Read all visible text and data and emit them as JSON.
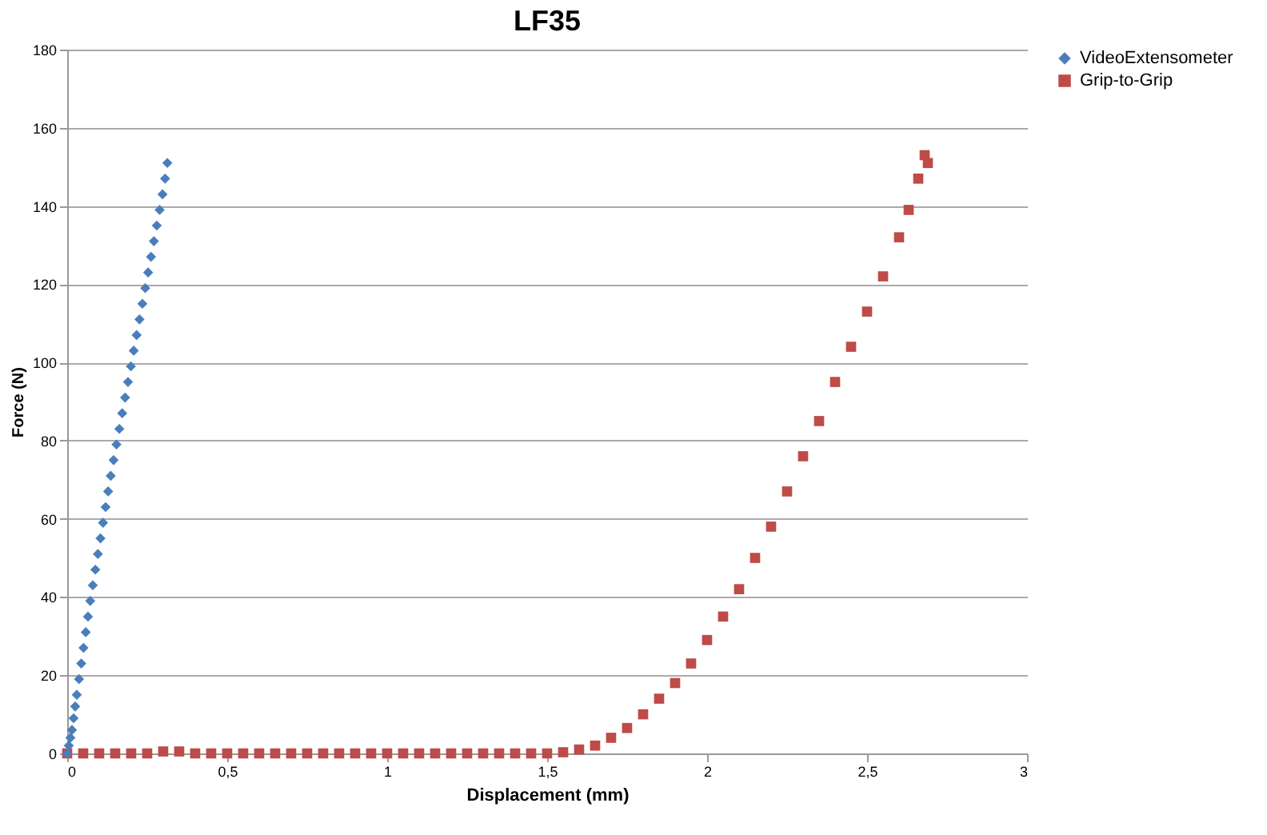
{
  "chart_data": {
    "type": "scatter",
    "title": "LF35",
    "xlabel": "Displacement (mm)",
    "ylabel": "Force (N)",
    "xlim": [
      0,
      3
    ],
    "ylim": [
      0,
      180
    ],
    "xticks": [
      0,
      {
        "value": 0.5,
        "label": "0,5"
      },
      1,
      {
        "value": 1.5,
        "label": "1,5"
      },
      2,
      {
        "value": 2.5,
        "label": "2,5"
      },
      3
    ],
    "yticks": [
      0,
      20,
      40,
      60,
      80,
      100,
      120,
      140,
      160,
      180
    ],
    "grid": "y",
    "legend": "right",
    "series": [
      {
        "name": "VideoExtensometer",
        "color": "#4a7ebb",
        "marker": "diamond",
        "x": [
          0,
          0.005,
          0.01,
          0.015,
          0.02,
          0.025,
          0.03,
          0.037,
          0.044,
          0.051,
          0.058,
          0.065,
          0.072,
          0.08,
          0.088,
          0.096,
          0.104,
          0.112,
          0.12,
          0.128,
          0.136,
          0.145,
          0.154,
          0.163,
          0.172,
          0.181,
          0.19,
          0.199,
          0.208,
          0.217,
          0.226,
          0.235,
          0.244,
          0.253,
          0.262,
          0.271,
          0.28,
          0.289,
          0.298,
          0.306,
          0.313
        ],
        "values": [
          0,
          2,
          4,
          6,
          9,
          12,
          15,
          19,
          23,
          27,
          31,
          35,
          39,
          43,
          47,
          51,
          55,
          59,
          63,
          67,
          71,
          75,
          79,
          83,
          87,
          91,
          95,
          99,
          103,
          107,
          111,
          115,
          119,
          123,
          127,
          131,
          135,
          139,
          143,
          147,
          151
        ]
      },
      {
        "name": "Grip-to-Grip",
        "color": "#be4b48",
        "marker": "square",
        "x": [
          0,
          0.05,
          0.1,
          0.15,
          0.2,
          0.25,
          0.3,
          0.35,
          0.4,
          0.45,
          0.5,
          0.55,
          0.6,
          0.65,
          0.7,
          0.75,
          0.8,
          0.85,
          0.9,
          0.95,
          1,
          1.05,
          1.1,
          1.15,
          1.2,
          1.25,
          1.3,
          1.35,
          1.4,
          1.45,
          1.5,
          1.55,
          1.6,
          1.65,
          1.7,
          1.75,
          1.8,
          1.85,
          1.9,
          1.95,
          2,
          2.05,
          2.1,
          2.15,
          2.2,
          2.25,
          2.3,
          2.35,
          2.4,
          2.45,
          2.5,
          2.55,
          2.6,
          2.63,
          2.66,
          2.68,
          2.69
        ],
        "values": [
          0,
          0,
          0,
          0,
          0,
          0,
          0.5,
          0.5,
          0,
          0,
          0,
          0,
          0,
          0,
          0,
          0,
          0,
          0,
          0,
          0,
          0,
          0,
          0,
          0,
          0,
          0,
          0,
          0,
          0,
          0,
          0,
          0.3,
          1,
          2,
          4,
          6.5,
          10,
          14,
          18,
          23,
          29,
          35,
          42,
          50,
          58,
          67,
          76,
          85,
          95,
          104,
          113,
          122,
          132,
          139,
          147,
          153,
          151
        ]
      }
    ]
  }
}
